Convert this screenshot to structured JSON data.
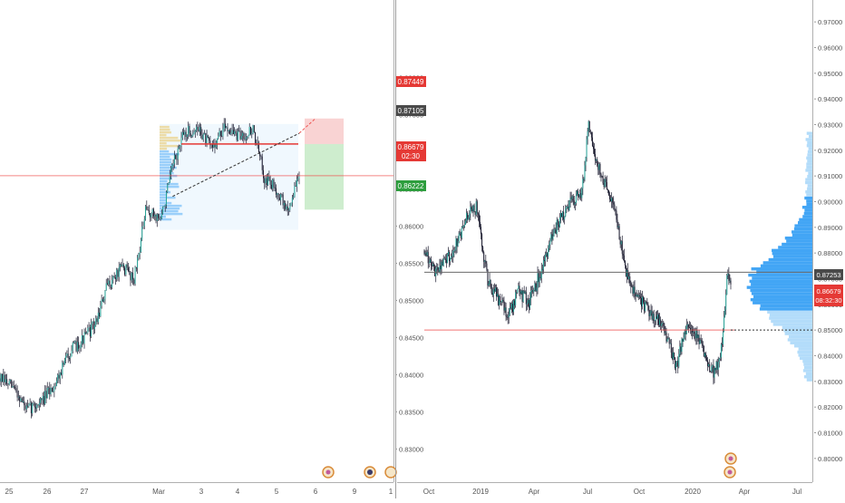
{
  "left_panel": {
    "chart_data": {
      "type": "candlestick",
      "title": "",
      "y_range": [
        0.827,
        0.888
      ],
      "y_ticks": [
        "0.88000",
        "0.87500",
        "0.87000",
        "0.86500",
        "0.86000",
        "0.85500",
        "0.85000",
        "0.84500",
        "0.84000",
        "0.83500",
        "0.83000"
      ],
      "y_tick_values": [
        0.88,
        0.875,
        0.87,
        0.865,
        0.86,
        0.855,
        0.85,
        0.845,
        0.84,
        0.835,
        0.83
      ],
      "x_ticks": [
        "25",
        "26",
        "27",
        "Mar",
        "3",
        "4",
        "5",
        "6",
        "9",
        "1"
      ],
      "path_anchors": [
        {
          "t": 0.0,
          "v": 0.8395
        },
        {
          "t": 0.04,
          "v": 0.838
        },
        {
          "t": 0.07,
          "v": 0.8352
        },
        {
          "t": 0.11,
          "v": 0.8365
        },
        {
          "t": 0.14,
          "v": 0.8385
        },
        {
          "t": 0.18,
          "v": 0.843
        },
        {
          "t": 0.22,
          "v": 0.845
        },
        {
          "t": 0.25,
          "v": 0.847
        },
        {
          "t": 0.28,
          "v": 0.852
        },
        {
          "t": 0.32,
          "v": 0.8545
        },
        {
          "t": 0.35,
          "v": 0.853
        },
        {
          "t": 0.38,
          "v": 0.862
        },
        {
          "t": 0.42,
          "v": 0.861
        },
        {
          "t": 0.45,
          "v": 0.868
        },
        {
          "t": 0.48,
          "v": 0.8725
        },
        {
          "t": 0.52,
          "v": 0.873
        },
        {
          "t": 0.55,
          "v": 0.8705
        },
        {
          "t": 0.59,
          "v": 0.8735
        },
        {
          "t": 0.62,
          "v": 0.872
        },
        {
          "t": 0.66,
          "v": 0.873
        },
        {
          "t": 0.69,
          "v": 0.8665
        },
        {
          "t": 0.72,
          "v": 0.865
        },
        {
          "t": 0.75,
          "v": 0.862
        },
        {
          "t": 0.78,
          "v": 0.8668
        }
      ],
      "volume_profile_range": [
        0.861,
        0.8735
      ],
      "trendline": {
        "from": [
          0.45,
          0.864
        ],
        "to": [
          0.85,
          0.8745
        ]
      },
      "position": {
        "target": 0.87449,
        "entry": 0.87105,
        "stop": 0.86222
      },
      "price_lines": {
        "current": 0.86679,
        "level": 0.87105
      },
      "labels": {
        "target": "0.87449",
        "level": "0.87105",
        "current": "0.86679",
        "countdown": "02:30",
        "stop": "0.86222"
      }
    }
  },
  "right_panel": {
    "chart_data": {
      "type": "candlestick",
      "title": "",
      "y_range": [
        0.795,
        0.975
      ],
      "y_ticks": [
        "0.97000",
        "0.96000",
        "0.95000",
        "0.94000",
        "0.93000",
        "0.92000",
        "0.91000",
        "0.90000",
        "0.89000",
        "0.88000",
        "0.87000",
        "0.86000",
        "0.85000",
        "0.84000",
        "0.83000",
        "0.82000",
        "0.81000",
        "0.80000"
      ],
      "y_tick_values": [
        0.97,
        0.96,
        0.95,
        0.94,
        0.93,
        0.92,
        0.91,
        0.9,
        0.89,
        0.88,
        0.87,
        0.86,
        0.85,
        0.84,
        0.83,
        0.82,
        0.81,
        0.8
      ],
      "x_ticks": [
        "Oct",
        "2019",
        "Apr",
        "Jul",
        "Oct",
        "2020",
        "Apr",
        "Jul"
      ],
      "path_anchors": [
        {
          "t": 0.0,
          "v": 0.881
        },
        {
          "t": 0.03,
          "v": 0.873
        },
        {
          "t": 0.06,
          "v": 0.877
        },
        {
          "t": 0.09,
          "v": 0.883
        },
        {
          "t": 0.12,
          "v": 0.894
        },
        {
          "t": 0.15,
          "v": 0.898
        },
        {
          "t": 0.18,
          "v": 0.87
        },
        {
          "t": 0.21,
          "v": 0.862
        },
        {
          "t": 0.24,
          "v": 0.856
        },
        {
          "t": 0.27,
          "v": 0.865
        },
        {
          "t": 0.3,
          "v": 0.861
        },
        {
          "t": 0.33,
          "v": 0.872
        },
        {
          "t": 0.36,
          "v": 0.885
        },
        {
          "t": 0.39,
          "v": 0.894
        },
        {
          "t": 0.42,
          "v": 0.9
        },
        {
          "t": 0.45,
          "v": 0.904
        },
        {
          "t": 0.47,
          "v": 0.931
        },
        {
          "t": 0.49,
          "v": 0.915
        },
        {
          "t": 0.52,
          "v": 0.906
        },
        {
          "t": 0.55,
          "v": 0.892
        },
        {
          "t": 0.58,
          "v": 0.87
        },
        {
          "t": 0.6,
          "v": 0.864
        },
        {
          "t": 0.63,
          "v": 0.859
        },
        {
          "t": 0.66,
          "v": 0.855
        },
        {
          "t": 0.69,
          "v": 0.848
        },
        {
          "t": 0.72,
          "v": 0.836
        },
        {
          "t": 0.75,
          "v": 0.852
        },
        {
          "t": 0.78,
          "v": 0.848
        },
        {
          "t": 0.81,
          "v": 0.836
        },
        {
          "t": 0.83,
          "v": 0.833
        },
        {
          "t": 0.85,
          "v": 0.844
        },
        {
          "t": 0.865,
          "v": 0.8725
        },
        {
          "t": 0.875,
          "v": 0.8668
        }
      ],
      "volume_profile_range": [
        0.83,
        0.927
      ],
      "price_lines": {
        "current": 0.86679,
        "level": 0.87253
      },
      "labels": {
        "level": "0.87253",
        "current": "0.86679",
        "countdown": "08:32:30"
      }
    }
  }
}
